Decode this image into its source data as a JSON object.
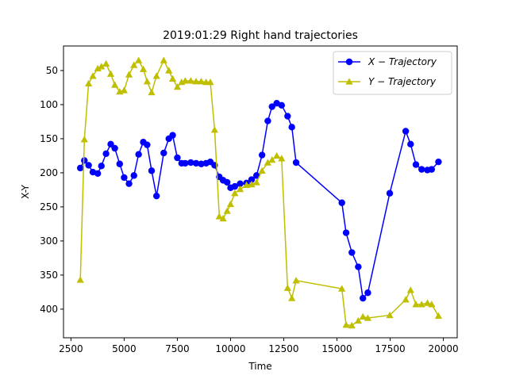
{
  "chart_data": {
    "type": "line",
    "title": "2019:01:29 Right hand trajectories",
    "xlabel": "Time",
    "ylabel": "X-Y",
    "xlim": [
      2150,
      20650
    ],
    "ylim": [
      442,
      14
    ],
    "y_inverted": true,
    "xticks": [
      2500,
      5000,
      7500,
      10000,
      12500,
      15000,
      17500,
      20000
    ],
    "yticks": [
      50,
      100,
      150,
      200,
      250,
      300,
      350,
      400
    ],
    "grid": false,
    "legend_position": "top-right",
    "series": [
      {
        "name": "X − Trajectory",
        "legend_label": "X − Trajectory",
        "color": "#0000ff",
        "marker": "circle",
        "x": [
          2940,
          3130,
          3330,
          3530,
          3760,
          3930,
          4150,
          4370,
          4560,
          4790,
          5000,
          5230,
          5460,
          5680,
          5900,
          6080,
          6290,
          6520,
          6860,
          7100,
          7280,
          7500,
          7700,
          7870,
          8130,
          8380,
          8620,
          8850,
          9050,
          9250,
          9470,
          9650,
          9840,
          10000,
          10200,
          10450,
          10750,
          10990,
          11220,
          11480,
          11750,
          11950,
          12170,
          12400,
          12680,
          12880,
          13080,
          15230,
          15430,
          15700,
          16000,
          16220,
          16450,
          17480,
          18230,
          18460,
          18710,
          18980,
          19250,
          19450,
          19770
        ],
        "y": [
          193,
          182,
          189,
          199,
          201,
          190,
          172,
          158,
          164,
          187,
          207,
          216,
          204,
          173,
          155,
          159,
          197,
          234,
          171,
          150,
          145,
          178,
          186,
          186,
          185,
          186,
          187,
          186,
          184,
          189,
          206,
          211,
          214,
          222,
          220,
          216,
          215,
          210,
          204,
          174,
          124,
          103,
          98,
          101,
          117,
          133,
          185,
          244,
          288,
          317,
          338,
          384,
          376,
          230,
          139,
          158,
          188,
          195,
          196,
          195,
          184
        ]
      },
      {
        "name": "Y − Trajectory",
        "legend_label": "Y − Trajectory",
        "color": "#bfbf00",
        "marker": "triangle",
        "x": [
          2940,
          3130,
          3330,
          3530,
          3760,
          3930,
          4150,
          4370,
          4560,
          4790,
          5000,
          5230,
          5460,
          5680,
          5900,
          6080,
          6290,
          6520,
          6860,
          7100,
          7280,
          7500,
          7700,
          7870,
          8130,
          8380,
          8620,
          8850,
          9050,
          9250,
          9470,
          9650,
          9840,
          10000,
          10200,
          10450,
          10750,
          10990,
          11220,
          11480,
          11750,
          11950,
          12170,
          12400,
          12680,
          12880,
          13080,
          15230,
          15430,
          15700,
          16000,
          16220,
          16450,
          17480,
          18230,
          18460,
          18710,
          18980,
          19250,
          19450,
          19770
        ],
        "y": [
          357,
          151,
          69,
          58,
          47,
          44,
          40,
          55,
          71,
          81,
          79,
          56,
          42,
          35,
          48,
          66,
          82,
          58,
          35,
          50,
          62,
          74,
          67,
          65,
          65,
          66,
          66,
          67,
          67,
          137,
          264,
          267,
          256,
          246,
          230,
          224,
          218,
          217,
          214,
          197,
          185,
          181,
          175,
          179,
          369,
          384,
          358,
          370,
          423,
          424,
          417,
          411,
          413,
          409,
          386,
          372,
          393,
          393,
          391,
          393,
          410
        ]
      }
    ]
  }
}
